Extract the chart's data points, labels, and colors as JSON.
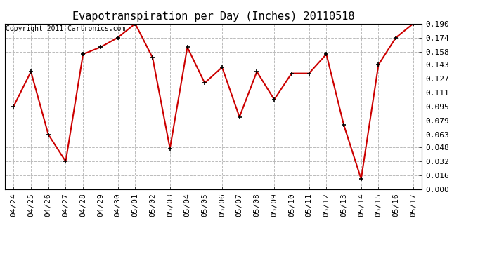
{
  "title": "Evapotranspiration per Day (Inches) 20110518",
  "copyright": "Copyright 2011 Cartronics.com",
  "x_labels": [
    "04/24",
    "04/25",
    "04/26",
    "04/27",
    "04/28",
    "04/29",
    "04/30",
    "05/01",
    "05/02",
    "05/03",
    "05/04",
    "05/05",
    "05/06",
    "05/07",
    "05/08",
    "05/09",
    "05/10",
    "05/11",
    "05/12",
    "05/13",
    "05/14",
    "05/15",
    "05/16",
    "05/17"
  ],
  "y_values": [
    0.095,
    0.135,
    0.063,
    0.032,
    0.155,
    0.163,
    0.174,
    0.19,
    0.151,
    0.047,
    0.163,
    0.122,
    0.14,
    0.083,
    0.135,
    0.103,
    0.133,
    0.133,
    0.155,
    0.074,
    0.012,
    0.143,
    0.174,
    0.19
  ],
  "y_ticks": [
    0.0,
    0.016,
    0.032,
    0.048,
    0.063,
    0.079,
    0.095,
    0.111,
    0.127,
    0.143,
    0.158,
    0.174,
    0.19
  ],
  "y_min": 0.0,
  "y_max": 0.19,
  "line_color": "#cc0000",
  "marker": "+",
  "marker_size": 5,
  "marker_color": "#000000",
  "bg_color": "#ffffff",
  "plot_bg_color": "#ffffff",
  "grid_color": "#bbbbbb",
  "grid_style": "--",
  "title_fontsize": 11,
  "copyright_fontsize": 7,
  "tick_fontsize": 8,
  "line_width": 1.5
}
